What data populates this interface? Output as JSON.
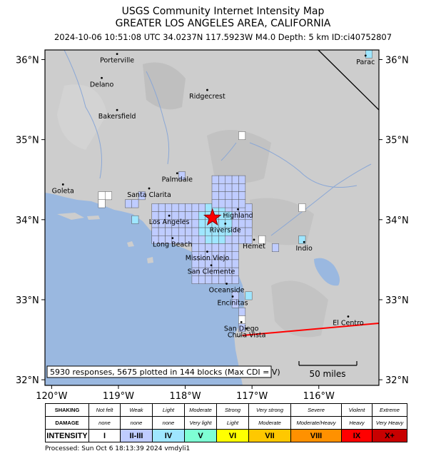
{
  "header": {
    "title": "USGS Community Internet Intensity Map",
    "region": "GREATER LOS ANGELES AREA, CALIFORNIA",
    "details": "2024-10-06 10:51:08 UTC 34.0237N 117.5923W M4.0 Depth: 5 km ID:ci40752807"
  },
  "map": {
    "lat_labels": [
      "36°N",
      "35°N",
      "34°N",
      "33°N",
      "32°N"
    ],
    "lon_labels": [
      "120°W",
      "119°W",
      "118°W",
      "117°W",
      "116°W"
    ],
    "epicenter": {
      "lat": 34.0237,
      "lon": -117.5923
    },
    "places": [
      {
        "name": "Porterville",
        "lat": 36.07,
        "lon": -119.02
      },
      {
        "name": "Delano",
        "lat": 35.77,
        "lon": -119.25
      },
      {
        "name": "Ridgecrest",
        "lat": 35.62,
        "lon": -117.67
      },
      {
        "name": "Bakersfield",
        "lat": 35.37,
        "lon": -119.02
      },
      {
        "name": "Palmdale",
        "lat": 34.58,
        "lon": -118.12
      },
      {
        "name": "Goleta",
        "lat": 34.44,
        "lon": -119.83
      },
      {
        "name": "Santa Clarita",
        "lat": 34.39,
        "lon": -118.54
      },
      {
        "name": "Los Angeles",
        "lat": 34.05,
        "lon": -118.24
      },
      {
        "name": "Highland",
        "lat": 34.13,
        "lon": -117.21
      },
      {
        "name": "Riverside",
        "lat": 33.95,
        "lon": -117.4
      },
      {
        "name": "Long Beach",
        "lat": 33.77,
        "lon": -118.19
      },
      {
        "name": "Hemet",
        "lat": 33.75,
        "lon": -116.97
      },
      {
        "name": "Indio",
        "lat": 33.72,
        "lon": -116.22
      },
      {
        "name": "Mission Viejo",
        "lat": 33.6,
        "lon": -117.67
      },
      {
        "name": "San Clemente",
        "lat": 33.43,
        "lon": -117.61
      },
      {
        "name": "Oceanside",
        "lat": 33.2,
        "lon": -117.38
      },
      {
        "name": "Encinitas",
        "lat": 33.04,
        "lon": -117.29
      },
      {
        "name": "San Diego",
        "lat": 32.72,
        "lon": -117.16
      },
      {
        "name": "El Centro",
        "lat": 32.79,
        "lon": -115.56
      },
      {
        "name": "Chula Vista",
        "lat": 32.64,
        "lon": -117.08
      },
      {
        "name": "Parac",
        "lat": 36.05,
        "lon": -115.3
      }
    ],
    "responses_note": "5930 responses, 5675 plotted in 144 blocks (Max CDI = V)",
    "scale_label": "50 miles"
  },
  "legend": {
    "row_labels": [
      "SHAKING",
      "DAMAGE",
      "INTENSITY"
    ],
    "shaking": [
      "Not felt",
      "Weak",
      "Light",
      "Moderate",
      "Strong",
      "Very strong",
      "Severe",
      "Violent",
      "Extreme"
    ],
    "damage": [
      "none",
      "none",
      "none",
      "Very light",
      "Light",
      "Moderate",
      "Moderate/Heavy",
      "Heavy",
      "Very Heavy"
    ],
    "intensity": [
      "I",
      "II-III",
      "IV",
      "V",
      "VI",
      "VII",
      "VIII",
      "IX",
      "X+"
    ],
    "colors": [
      "#ffffff",
      "#bfccff",
      "#9fe6ff",
      "#7effd4",
      "#ffff00",
      "#ffc800",
      "#ff9100",
      "#ff0000",
      "#c80000"
    ]
  },
  "footer": "Processed: Sun Oct  6 18:13:39 2024 vmdyli1"
}
